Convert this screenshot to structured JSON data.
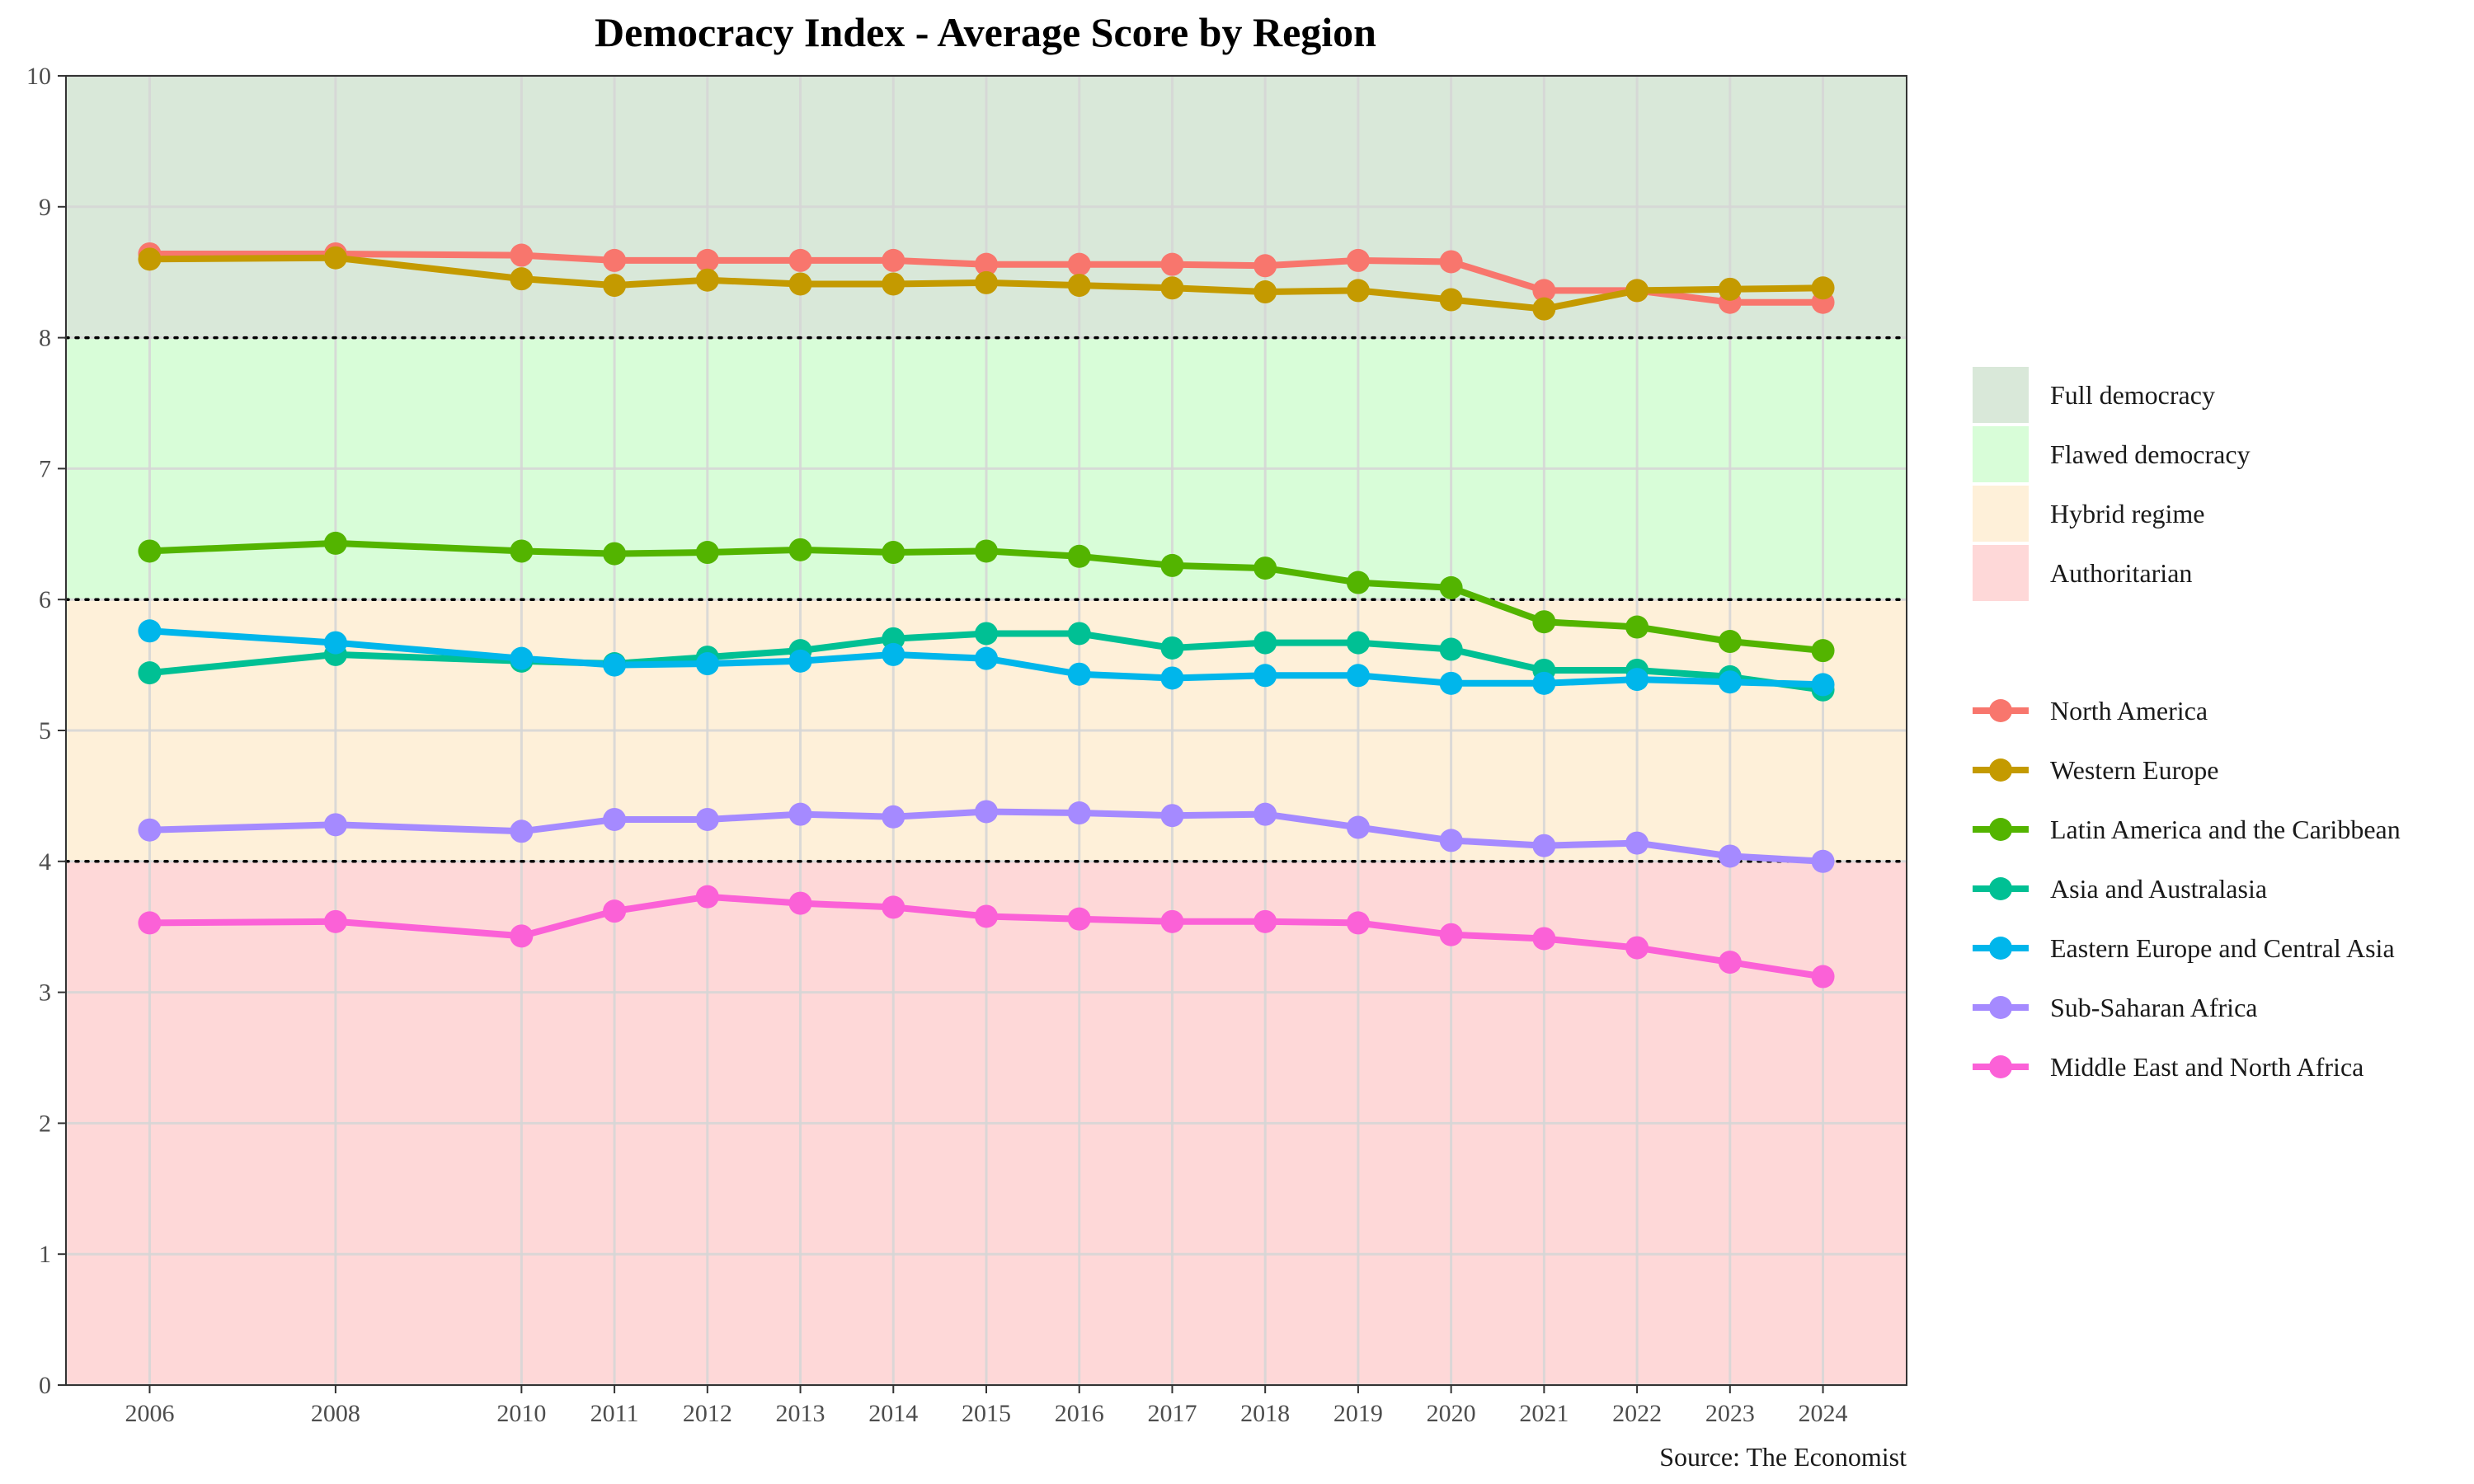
{
  "chart_data": {
    "type": "line",
    "title": "Democracy Index - Average Score by Region",
    "caption": "Source: The Economist",
    "xlabel": "",
    "ylabel": "",
    "x": [
      2006,
      2008,
      2010,
      2011,
      2012,
      2013,
      2014,
      2015,
      2016,
      2017,
      2018,
      2019,
      2020,
      2021,
      2022,
      2023,
      2024
    ],
    "xlim": [
      2005.1,
      2024.9
    ],
    "ylim": [
      0,
      10
    ],
    "yticks": [
      0,
      1,
      2,
      3,
      4,
      5,
      6,
      7,
      8,
      9,
      10
    ],
    "grid": true,
    "legend_position": "right",
    "bands": [
      {
        "name": "Full democracy",
        "from": 8,
        "to": 10,
        "color": "#d9e8d9"
      },
      {
        "name": "Flawed democracy",
        "from": 6,
        "to": 8,
        "color": "#d8fdd8"
      },
      {
        "name": "Hybrid regime",
        "from": 4,
        "to": 6,
        "color": "#fef0d9"
      },
      {
        "name": "Authoritarian",
        "from": 0,
        "to": 4,
        "color": "#fed8d8"
      }
    ],
    "thresholds": [
      8,
      6,
      4
    ],
    "series": [
      {
        "name": "North America",
        "color": "#F8766D",
        "values": [
          8.64,
          8.64,
          8.63,
          8.59,
          8.59,
          8.59,
          8.59,
          8.56,
          8.56,
          8.56,
          8.55,
          8.59,
          8.58,
          8.36,
          8.36,
          8.27,
          8.27
        ]
      },
      {
        "name": "Western Europe",
        "color": "#C49A00",
        "values": [
          8.6,
          8.61,
          8.45,
          8.4,
          8.44,
          8.41,
          8.41,
          8.42,
          8.4,
          8.38,
          8.35,
          8.36,
          8.29,
          8.22,
          8.36,
          8.37,
          8.38
        ]
      },
      {
        "name": "Latin America and the Caribbean",
        "color": "#53B400",
        "values": [
          6.37,
          6.43,
          6.37,
          6.35,
          6.36,
          6.38,
          6.36,
          6.37,
          6.33,
          6.26,
          6.24,
          6.13,
          6.09,
          5.83,
          5.79,
          5.68,
          5.61
        ]
      },
      {
        "name": "Asia and Australasia",
        "color": "#00C094",
        "values": [
          5.44,
          5.58,
          5.53,
          5.51,
          5.56,
          5.61,
          5.7,
          5.74,
          5.74,
          5.63,
          5.67,
          5.67,
          5.62,
          5.46,
          5.46,
          5.41,
          5.31
        ]
      },
      {
        "name": "Eastern Europe and Central Asia",
        "color": "#00B6EB",
        "values": [
          5.76,
          5.67,
          5.55,
          5.5,
          5.51,
          5.53,
          5.58,
          5.55,
          5.43,
          5.4,
          5.42,
          5.42,
          5.36,
          5.36,
          5.39,
          5.37,
          5.35
        ]
      },
      {
        "name": "Sub-Saharan Africa",
        "color": "#A58AFF",
        "values": [
          4.24,
          4.28,
          4.23,
          4.32,
          4.32,
          4.36,
          4.34,
          4.38,
          4.37,
          4.35,
          4.36,
          4.26,
          4.16,
          4.12,
          4.14,
          4.04,
          4.0
        ]
      },
      {
        "name": "Middle East and North Africa",
        "color": "#FB61D7",
        "values": [
          3.53,
          3.54,
          3.43,
          3.62,
          3.73,
          3.68,
          3.65,
          3.58,
          3.56,
          3.54,
          3.54,
          3.53,
          3.44,
          3.41,
          3.34,
          3.23,
          3.12
        ]
      }
    ]
  }
}
